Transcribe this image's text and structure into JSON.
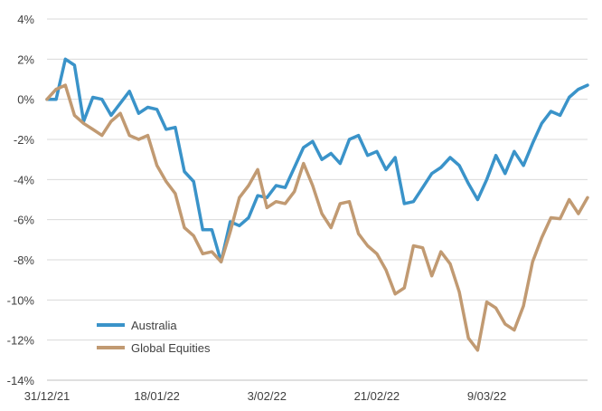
{
  "chart_data": {
    "type": "line",
    "title": "",
    "xlabel": "",
    "ylabel": "",
    "y_unit": "%",
    "ylim": [
      -14,
      4
    ],
    "y_ticks": [
      4,
      2,
      0,
      -2,
      -4,
      -6,
      -8,
      -10,
      -12,
      -14
    ],
    "y_tick_labels": [
      "4%",
      "2%",
      "0%",
      "-2%",
      "-4%",
      "-6%",
      "-8%",
      "-10%",
      "-12%",
      "-14%"
    ],
    "x_tick_labels": [
      "31/12/21",
      "18/01/22",
      "3/02/22",
      "21/02/22",
      "9/03/22"
    ],
    "x_tick_indices": [
      0,
      12,
      24,
      36,
      48
    ],
    "grid": "horizontal",
    "legend_position": "bottom-left",
    "colors": {
      "Australia": "#3a93c9",
      "Global Equities": "#c19a72",
      "grid": "#d9d9d9",
      "text": "#404040"
    },
    "series": [
      {
        "name": "Australia",
        "values": [
          0,
          0,
          2.0,
          1.7,
          -1.1,
          0.1,
          0,
          -0.8,
          -0.2,
          0.4,
          -0.7,
          -0.4,
          -0.5,
          -1.5,
          -1.4,
          -3.6,
          -4.1,
          -6.5,
          -6.5,
          -8.1,
          -6.1,
          -6.3,
          -5.9,
          -4.8,
          -4.9,
          -4.3,
          -4.4,
          -3.4,
          -2.4,
          -2.1,
          -3.0,
          -2.7,
          -3.2,
          -2.0,
          -1.8,
          -2.8,
          -2.6,
          -3.5,
          -2.9,
          -5.2,
          -5.1,
          -4.4,
          -3.7,
          -3.4,
          -2.9,
          -3.3,
          -4.2,
          -5.0,
          -4.0,
          -2.8,
          -3.7,
          -2.6,
          -3.3,
          -2.2,
          -1.2,
          -0.6,
          -0.8,
          0.1,
          0.5,
          0.7
        ]
      },
      {
        "name": "Global Equities",
        "values": [
          0,
          0.5,
          0.7,
          -0.8,
          -1.2,
          -1.5,
          -1.8,
          -1.1,
          -0.7,
          -1.8,
          -2.0,
          -1.8,
          -3.3,
          -4.1,
          -4.7,
          -6.4,
          -6.8,
          -7.7,
          -7.6,
          -8.1,
          -6.6,
          -4.9,
          -4.3,
          -3.5,
          -5.4,
          -5.1,
          -5.2,
          -4.6,
          -3.2,
          -4.3,
          -5.7,
          -6.4,
          -5.2,
          -5.1,
          -6.7,
          -7.3,
          -7.7,
          -8.5,
          -9.7,
          -9.4,
          -7.3,
          -7.4,
          -8.8,
          -7.6,
          -8.2,
          -9.6,
          -11.9,
          -12.5,
          -10.1,
          -10.4,
          -11.2,
          -11.5,
          -10.3,
          -8.1,
          -6.9,
          -5.9,
          -5.95,
          -5.0,
          -5.7,
          -4.9
        ]
      }
    ]
  }
}
